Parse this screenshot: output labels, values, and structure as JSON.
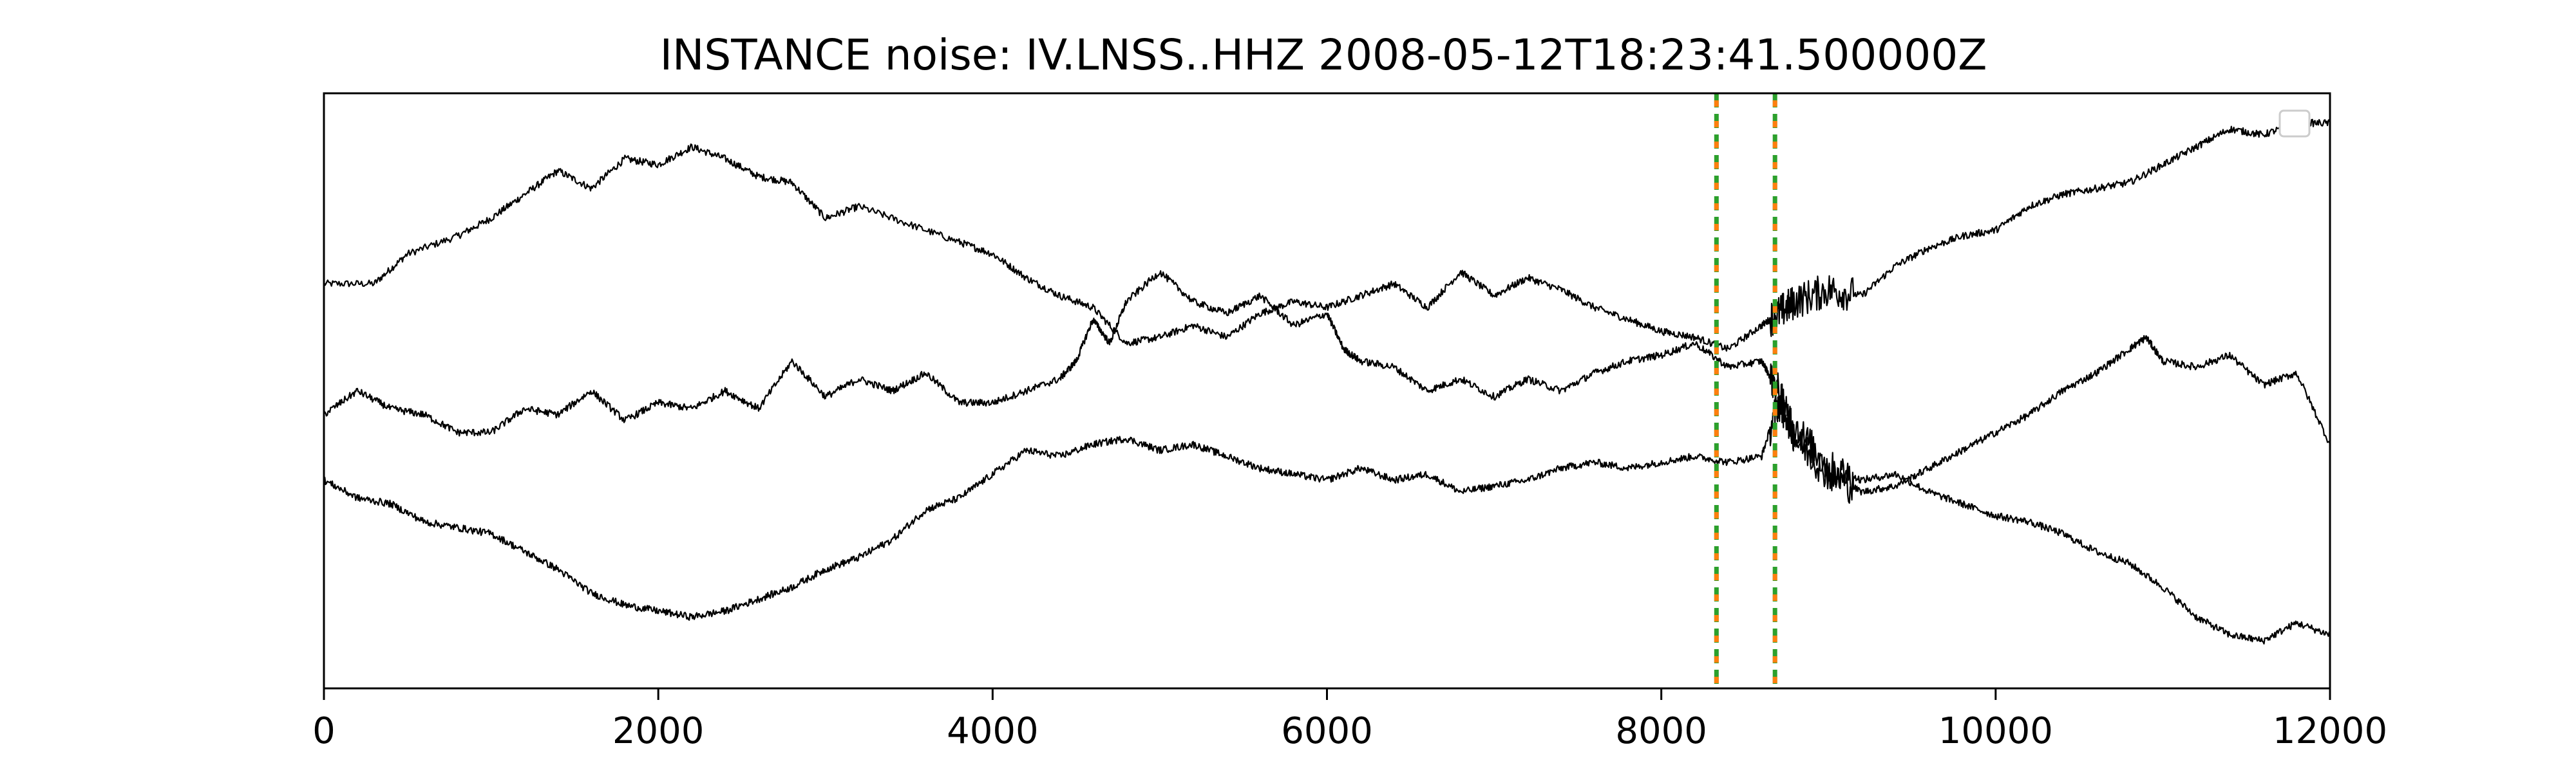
{
  "chart_data": {
    "type": "line",
    "title": "INSTANCE noise: IV.LNSS..HHZ 2008-05-12T18:23:41.500000Z",
    "xlabel": "",
    "ylabel": "",
    "xlim": [
      0,
      12000
    ],
    "ylim": [
      0,
      1
    ],
    "x_ticks": [
      0,
      2000,
      4000,
      6000,
      8000,
      10000,
      12000
    ],
    "x_tick_labels": [
      "0",
      "2000",
      "4000",
      "6000",
      "8000",
      "10000",
      "12000"
    ],
    "y_ticks_visible": false,
    "grid": false,
    "legend": {
      "placement": "upper-right",
      "entries": []
    },
    "series": [
      {
        "color": "#000000",
        "points": [
          [
            0,
            0.68
          ],
          [
            300,
            0.68
          ],
          [
            500,
            0.73
          ],
          [
            800,
            0.76
          ],
          [
            1000,
            0.79
          ],
          [
            1200,
            0.83
          ],
          [
            1400,
            0.87
          ],
          [
            1600,
            0.84
          ],
          [
            1800,
            0.89
          ],
          [
            2000,
            0.88
          ],
          [
            2200,
            0.91
          ],
          [
            2400,
            0.89
          ],
          [
            2600,
            0.86
          ],
          [
            2800,
            0.85
          ],
          [
            3000,
            0.79
          ],
          [
            3200,
            0.81
          ],
          [
            3500,
            0.78
          ],
          [
            3800,
            0.75
          ],
          [
            4000,
            0.73
          ],
          [
            4200,
            0.69
          ],
          [
            4400,
            0.66
          ],
          [
            4600,
            0.64
          ],
          [
            4800,
            0.58
          ],
          [
            5000,
            0.59
          ],
          [
            5200,
            0.61
          ],
          [
            5400,
            0.59
          ],
          [
            5600,
            0.63
          ],
          [
            5800,
            0.65
          ],
          [
            6000,
            0.64
          ],
          [
            6200,
            0.66
          ],
          [
            6400,
            0.68
          ],
          [
            6600,
            0.64
          ],
          [
            6800,
            0.7
          ],
          [
            7000,
            0.66
          ],
          [
            7200,
            0.69
          ],
          [
            7400,
            0.67
          ],
          [
            7600,
            0.64
          ],
          [
            7800,
            0.62
          ],
          [
            8000,
            0.6
          ],
          [
            8200,
            0.59
          ],
          [
            8400,
            0.57
          ],
          [
            8600,
            0.61
          ],
          [
            8700,
            0.63
          ],
          [
            8800,
            0.65
          ],
          [
            9000,
            0.67
          ],
          [
            9200,
            0.66
          ],
          [
            9400,
            0.71
          ],
          [
            9600,
            0.74
          ],
          [
            9800,
            0.76
          ],
          [
            10000,
            0.77
          ],
          [
            10200,
            0.81
          ],
          [
            10400,
            0.83
          ],
          [
            10600,
            0.84
          ],
          [
            10800,
            0.85
          ],
          [
            11000,
            0.88
          ],
          [
            11200,
            0.91
          ],
          [
            11400,
            0.94
          ],
          [
            11600,
            0.93
          ],
          [
            11800,
            0.95
          ],
          [
            12000,
            0.95
          ]
        ]
      },
      {
        "color": "#000000",
        "points": [
          [
            0,
            0.46
          ],
          [
            200,
            0.5
          ],
          [
            400,
            0.47
          ],
          [
            600,
            0.46
          ],
          [
            800,
            0.43
          ],
          [
            1000,
            0.43
          ],
          [
            1200,
            0.47
          ],
          [
            1400,
            0.46
          ],
          [
            1600,
            0.5
          ],
          [
            1800,
            0.45
          ],
          [
            2000,
            0.48
          ],
          [
            2200,
            0.47
          ],
          [
            2400,
            0.5
          ],
          [
            2600,
            0.47
          ],
          [
            2800,
            0.55
          ],
          [
            3000,
            0.49
          ],
          [
            3200,
            0.52
          ],
          [
            3400,
            0.5
          ],
          [
            3600,
            0.53
          ],
          [
            3800,
            0.48
          ],
          [
            4000,
            0.48
          ],
          [
            4200,
            0.5
          ],
          [
            4400,
            0.52
          ],
          [
            4500,
            0.55
          ],
          [
            4600,
            0.62
          ],
          [
            4700,
            0.58
          ],
          [
            4800,
            0.65
          ],
          [
            5000,
            0.7
          ],
          [
            5200,
            0.65
          ],
          [
            5400,
            0.63
          ],
          [
            5600,
            0.66
          ],
          [
            5800,
            0.61
          ],
          [
            6000,
            0.63
          ],
          [
            6100,
            0.57
          ],
          [
            6200,
            0.55
          ],
          [
            6400,
            0.54
          ],
          [
            6600,
            0.5
          ],
          [
            6800,
            0.52
          ],
          [
            7000,
            0.49
          ],
          [
            7200,
            0.52
          ],
          [
            7400,
            0.5
          ],
          [
            7600,
            0.53
          ],
          [
            7800,
            0.55
          ],
          [
            8000,
            0.56
          ],
          [
            8200,
            0.58
          ],
          [
            8400,
            0.54
          ],
          [
            8600,
            0.55
          ],
          [
            8700,
            0.5
          ],
          [
            8800,
            0.42
          ],
          [
            9000,
            0.36
          ],
          [
            9200,
            0.33
          ],
          [
            9400,
            0.34
          ],
          [
            9600,
            0.37
          ],
          [
            9800,
            0.4
          ],
          [
            10000,
            0.43
          ],
          [
            10200,
            0.46
          ],
          [
            10400,
            0.5
          ],
          [
            10600,
            0.53
          ],
          [
            10800,
            0.57
          ],
          [
            10900,
            0.59
          ],
          [
            11000,
            0.55
          ],
          [
            11200,
            0.54
          ],
          [
            11400,
            0.56
          ],
          [
            11600,
            0.51
          ],
          [
            11800,
            0.53
          ],
          [
            12000,
            0.41
          ]
        ]
      },
      {
        "color": "#000000",
        "points": [
          [
            0,
            0.35
          ],
          [
            200,
            0.32
          ],
          [
            400,
            0.31
          ],
          [
            600,
            0.28
          ],
          [
            800,
            0.27
          ],
          [
            1000,
            0.26
          ],
          [
            1200,
            0.23
          ],
          [
            1400,
            0.2
          ],
          [
            1600,
            0.16
          ],
          [
            1800,
            0.14
          ],
          [
            2000,
            0.13
          ],
          [
            2200,
            0.12
          ],
          [
            2400,
            0.13
          ],
          [
            2600,
            0.15
          ],
          [
            2800,
            0.17
          ],
          [
            3000,
            0.2
          ],
          [
            3200,
            0.22
          ],
          [
            3400,
            0.25
          ],
          [
            3600,
            0.3
          ],
          [
            3800,
            0.32
          ],
          [
            4000,
            0.36
          ],
          [
            4200,
            0.4
          ],
          [
            4400,
            0.39
          ],
          [
            4600,
            0.41
          ],
          [
            4800,
            0.42
          ],
          [
            5000,
            0.4
          ],
          [
            5200,
            0.41
          ],
          [
            5400,
            0.39
          ],
          [
            5600,
            0.37
          ],
          [
            5800,
            0.36
          ],
          [
            6000,
            0.35
          ],
          [
            6200,
            0.37
          ],
          [
            6400,
            0.35
          ],
          [
            6600,
            0.36
          ],
          [
            6800,
            0.33
          ],
          [
            7000,
            0.34
          ],
          [
            7200,
            0.35
          ],
          [
            7400,
            0.37
          ],
          [
            7600,
            0.38
          ],
          [
            7800,
            0.37
          ],
          [
            8000,
            0.38
          ],
          [
            8200,
            0.39
          ],
          [
            8400,
            0.38
          ],
          [
            8600,
            0.39
          ],
          [
            8700,
            0.48
          ],
          [
            8800,
            0.44
          ],
          [
            9000,
            0.37
          ],
          [
            9200,
            0.35
          ],
          [
            9400,
            0.36
          ],
          [
            9600,
            0.33
          ],
          [
            9800,
            0.31
          ],
          [
            10000,
            0.29
          ],
          [
            10200,
            0.28
          ],
          [
            10400,
            0.26
          ],
          [
            10600,
            0.23
          ],
          [
            10800,
            0.21
          ],
          [
            11000,
            0.17
          ],
          [
            11200,
            0.12
          ],
          [
            11400,
            0.09
          ],
          [
            11600,
            0.08
          ],
          [
            11800,
            0.11
          ],
          [
            12000,
            0.09
          ]
        ]
      }
    ],
    "vertical_markers": [
      {
        "x": 8330,
        "colors": [
          "#2ca02c",
          "#ff7f0e"
        ],
        "style": "dashed"
      },
      {
        "x": 8680,
        "colors": [
          "#2ca02c",
          "#ff7f0e"
        ],
        "style": "dashed"
      }
    ]
  }
}
